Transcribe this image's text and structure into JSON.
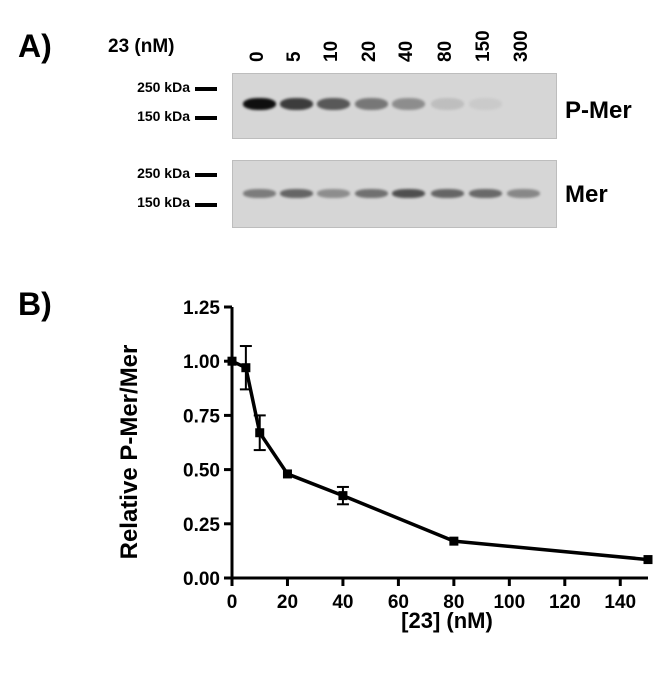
{
  "panel_a": {
    "letter": "A)",
    "conc_label": "23 (nM)",
    "lanes": [
      "0",
      "5",
      "10",
      "20",
      "40",
      "80",
      "150",
      "300"
    ],
    "blots": [
      {
        "name": "P-Mer",
        "mw_markers": [
          "250 kDa",
          "150 kDa"
        ],
        "band_intensity": [
          1.0,
          0.85,
          0.75,
          0.62,
          0.52,
          0.22,
          0.12,
          0.0
        ]
      },
      {
        "name": "Mer",
        "mw_markers": [
          "250 kDa",
          "150 kDa"
        ],
        "band_intensity": [
          0.6,
          0.7,
          0.52,
          0.65,
          0.78,
          0.7,
          0.68,
          0.55
        ]
      }
    ]
  },
  "panel_b": {
    "letter": "B)"
  },
  "chart_data": {
    "type": "line",
    "title": "",
    "xlabel": "[23] (nM)",
    "ylabel": "Relative P-Mer/Mer",
    "xlim": [
      0,
      150
    ],
    "ylim": [
      0,
      1.25
    ],
    "xticks": [
      "0",
      "20",
      "40",
      "60",
      "80",
      "100",
      "120",
      "140"
    ],
    "yticks": [
      "0.00",
      "0.25",
      "0.50",
      "0.75",
      "1.00",
      "1.25"
    ],
    "grid": false,
    "series": [
      {
        "x": [
          0,
          5,
          10,
          20,
          40,
          80,
          150
        ],
        "y": [
          1.0,
          0.97,
          0.67,
          0.48,
          0.38,
          0.17,
          0.085
        ],
        "err": [
          0.0,
          0.1,
          0.08,
          0.0,
          0.04,
          0.0,
          0.0
        ]
      }
    ]
  }
}
